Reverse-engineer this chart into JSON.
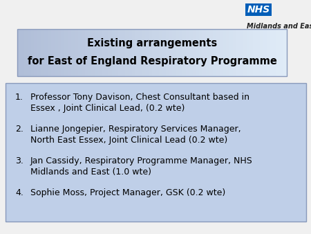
{
  "bg_color": "#f0f0f0",
  "title_line1": "Existing arrangements",
  "title_line2": "for East of England Respiratory Programme",
  "title_text_color": "#000000",
  "body_text_color": "#000000",
  "items_line1": [
    "Professor Tony Davison, Chest Consultant based in",
    "Lianne Jongepier, Respiratory Services Manager,",
    "Jan Cassidy, Respiratory Programme Manager, NHS",
    "Sophie Moss, Project Manager, GSK (0.2 wte)"
  ],
  "items_line2": [
    "Essex , Joint Clinical Lead, (0.2 wte)",
    "North East Essex, Joint Clinical Lead (0.2 wte)",
    "Midlands and East (1.0 wte)",
    ""
  ],
  "nhs_box_color": "#005EB8",
  "nhs_text": "NHS",
  "nhs_sub_text": "Midlands and East"
}
